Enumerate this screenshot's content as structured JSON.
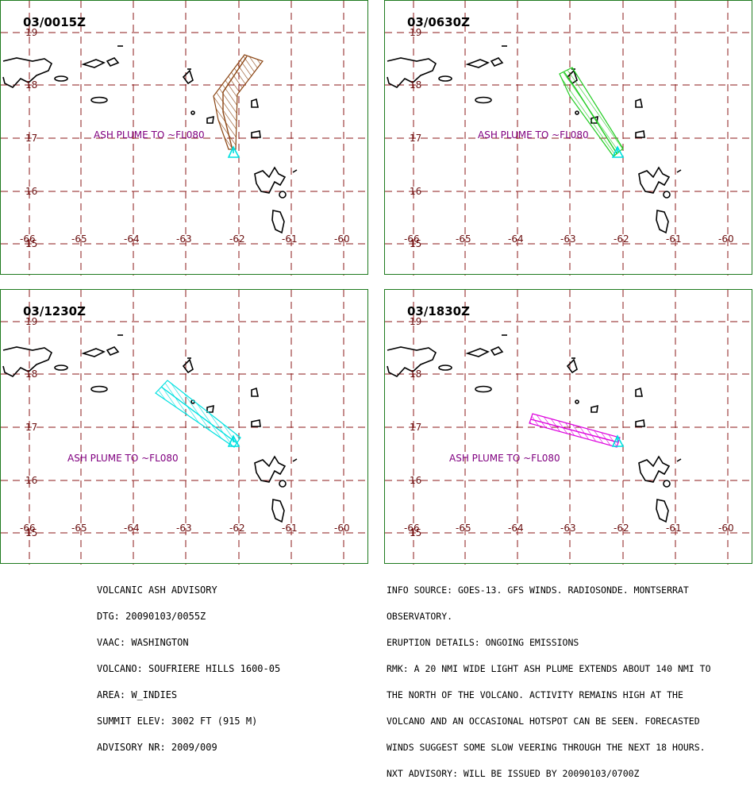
{
  "colors": {
    "border": "#1e7a1e",
    "grid": "#8b1a1a",
    "coast": "#000000",
    "volcano": "#00e0e0",
    "plume_0015": "#8b4513",
    "plume_0630": "#22cc22",
    "plume_1230": "#00e0e0",
    "plume_1830": "#dd00dd",
    "label": "#800080"
  },
  "grid": {
    "lat_labels": [
      "19",
      "18",
      "17",
      "16",
      "15"
    ],
    "lon_labels": [
      "-66",
      "-65",
      "-64",
      "-63",
      "-62",
      "-61",
      "-60"
    ]
  },
  "panels": [
    {
      "title": "03/0015Z",
      "plume_label": "ASH PLUME TO ~FL080",
      "plume_color_key": "plume_0015"
    },
    {
      "title": "03/0630Z",
      "plume_label": "ASH PLUME TO ~FL080",
      "plume_color_key": "plume_0630"
    },
    {
      "title": "03/1230Z",
      "plume_label": "ASH PLUME TO ~FL080",
      "plume_color_key": "plume_1230"
    },
    {
      "title": "03/1830Z",
      "plume_label": "ASH PLUME TO ~FL080",
      "plume_color_key": "plume_1830"
    }
  ],
  "advisory": {
    "line1": "VOLCANIC ASH ADVISORY",
    "line2": "DTG: 20090103/0055Z",
    "line3": "VAAC: WASHINGTON",
    "line4": "VOLCANO: SOUFRIERE HILLS 1600-05",
    "line5": "AREA: W_INDIES",
    "line6": "SUMMIT ELEV: 3002 FT (915 M)",
    "line7": "ADVISORY NR: 2009/009"
  },
  "remarks": {
    "line1": "INFO SOURCE: GOES-13. GFS WINDS. RADIOSONDE. MONTSERRAT",
    "line2": "OBSERVATORY.",
    "line3": "ERUPTION DETAILS: ONGOING EMISSIONS",
    "line4": "RMK: A 20 NMI WIDE LIGHT ASH PLUME EXTENDS ABOUT 140 NMI TO",
    "line5": "THE NORTH OF THE VOLCANO. ACTIVITY REMAINS HIGH AT THE",
    "line6": "VOLCANO AND AN OCCASIONAL HOTSPOT CAN BE SEEN. FORECASTED",
    "line7": "WINDS SUGGEST SOME SLOW VEERING THROUGH THE NEXT 18 HOURS.",
    "line8": "NXT ADVISORY: WILL BE ISSUED BY 20090103/0700Z"
  }
}
